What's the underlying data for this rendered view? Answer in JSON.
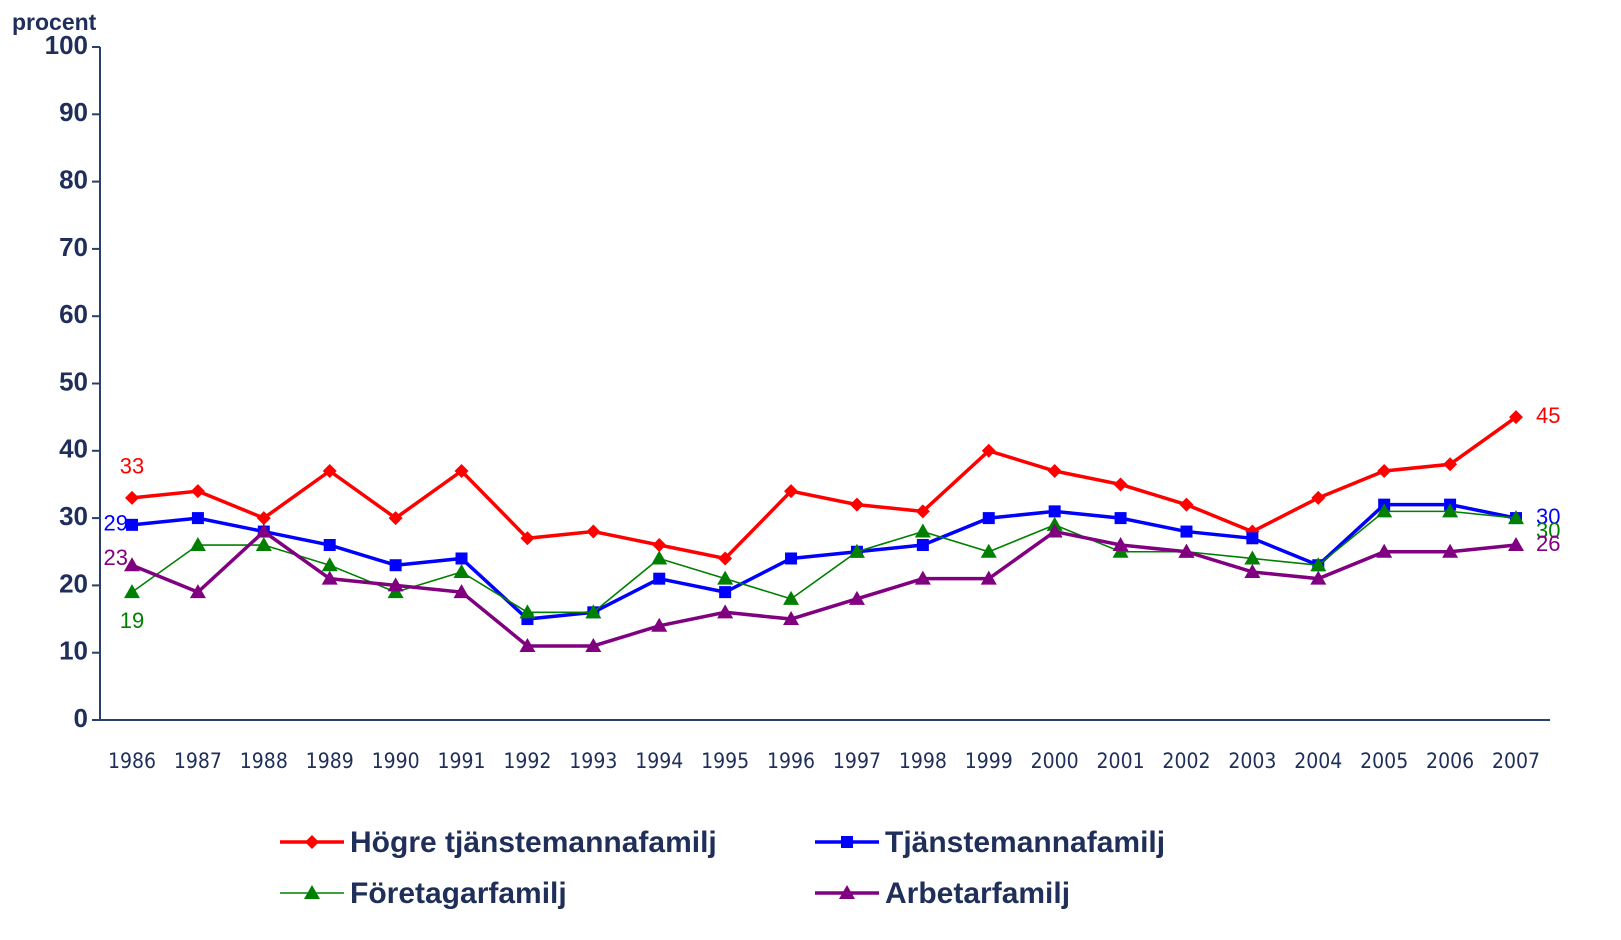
{
  "chart_data": {
    "type": "line",
    "y_label": "procent",
    "categories": [
      "1986",
      "1987",
      "1988",
      "1989",
      "1990",
      "1991",
      "1992",
      "1993",
      "1994",
      "1995",
      "1996",
      "1997",
      "1998",
      "1999",
      "2000",
      "2001",
      "2002",
      "2003",
      "2004",
      "2005",
      "2006",
      "2007"
    ],
    "series": [
      {
        "name": "Högre tjänstemannafamilj",
        "color": "#ff0000",
        "marker": "diamond",
        "values": [
          33,
          34,
          30,
          37,
          30,
          37,
          27,
          28,
          26,
          24,
          34,
          32,
          31,
          40,
          37,
          35,
          32,
          28,
          33,
          37,
          38,
          45
        ]
      },
      {
        "name": "Tjänstemannafamilj",
        "color": "#0000ff",
        "marker": "square",
        "values": [
          29,
          30,
          28,
          26,
          23,
          24,
          15,
          16,
          21,
          19,
          24,
          25,
          26,
          30,
          31,
          30,
          28,
          27,
          23,
          32,
          32,
          30
        ]
      },
      {
        "name": "Företagarfamilj",
        "color": "#008000",
        "marker": "triangle",
        "values": [
          19,
          26,
          26,
          23,
          19,
          22,
          16,
          16,
          24,
          21,
          18,
          25,
          28,
          25,
          29,
          25,
          25,
          24,
          23,
          31,
          31,
          30
        ]
      },
      {
        "name": "Arbetarfamilj",
        "color": "#800080",
        "marker": "triangle",
        "values": [
          23,
          19,
          28,
          21,
          20,
          19,
          11,
          11,
          14,
          16,
          15,
          18,
          21,
          21,
          28,
          26,
          25,
          22,
          21,
          25,
          25,
          26
        ]
      }
    ],
    "ylim": [
      0,
      100
    ],
    "yticks": [
      0,
      10,
      20,
      30,
      40,
      50,
      60,
      70,
      80,
      90,
      100
    ],
    "grid": false
  }
}
